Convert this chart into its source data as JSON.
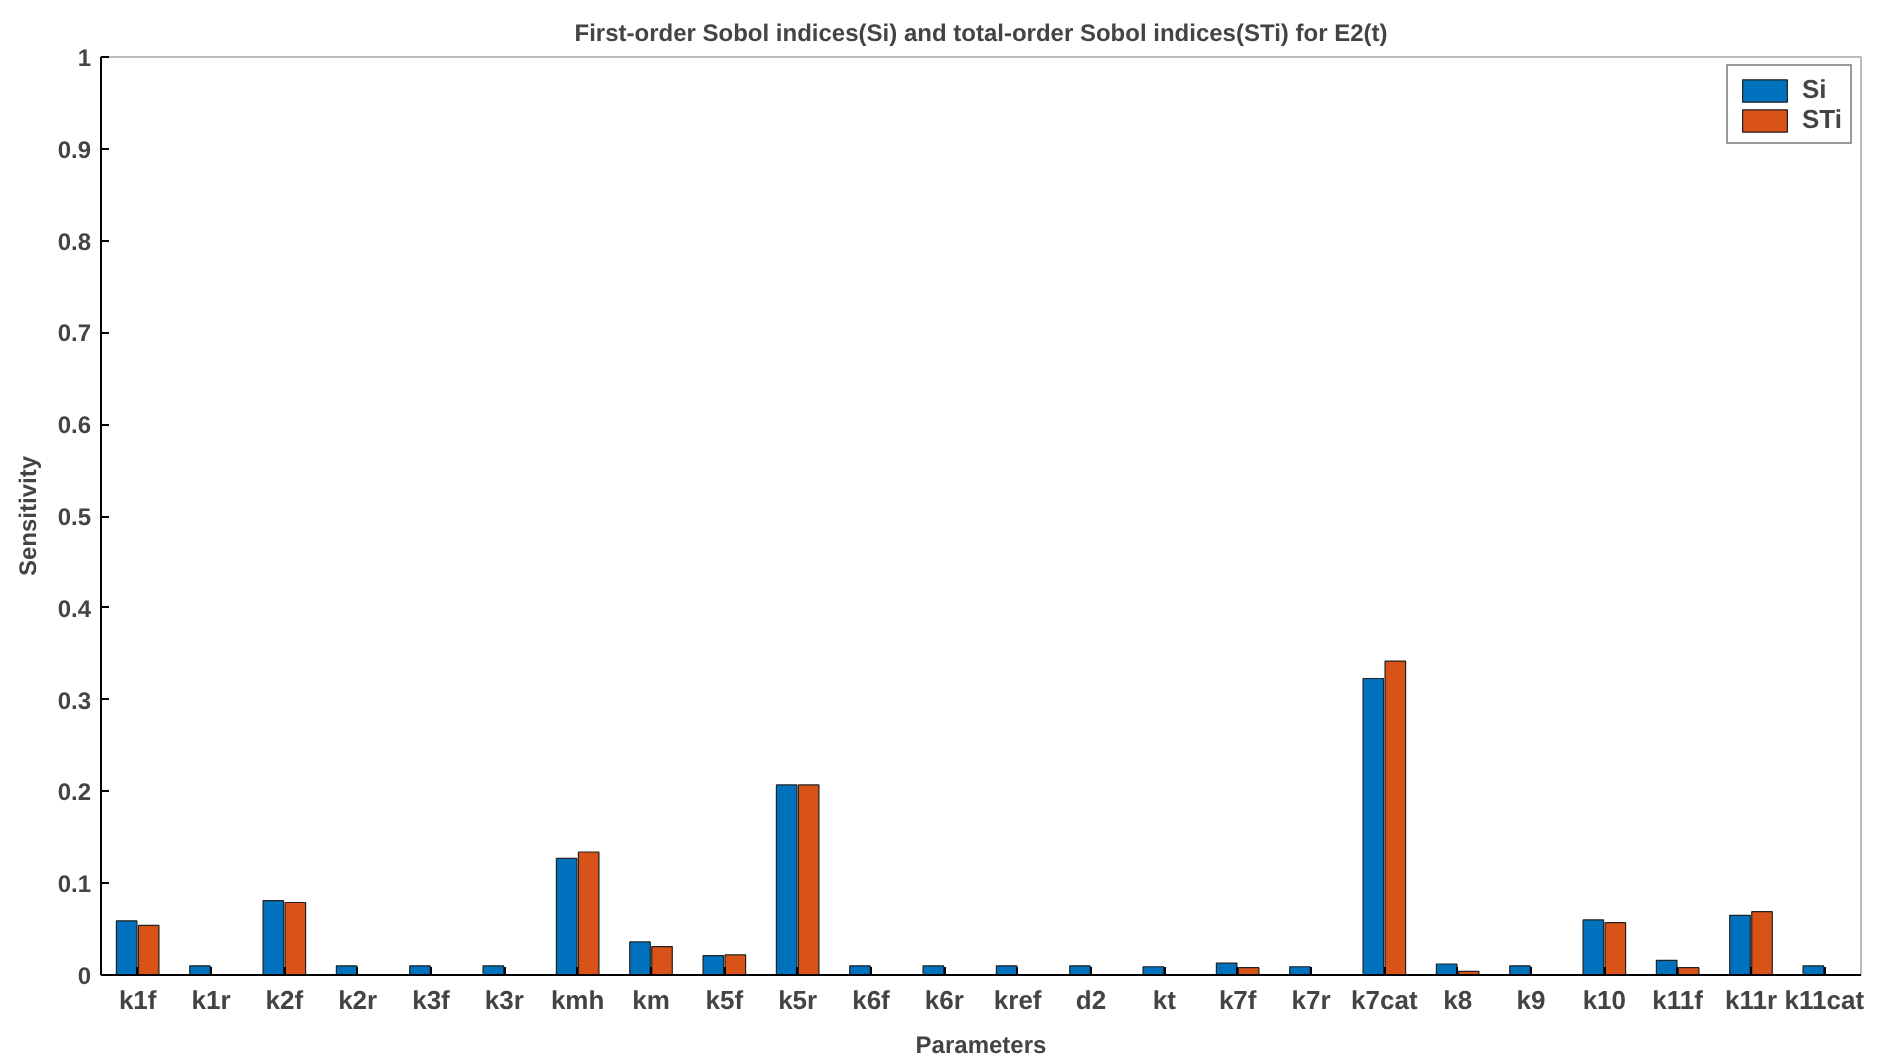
{
  "chart_data": {
    "type": "bar",
    "title": "First-order Sobol indices(Si) and total-order Sobol indices(STi) for E2(t)",
    "xlabel": "Parameters",
    "ylabel": "Sensitivity",
    "categories": [
      "k1f",
      "k1r",
      "k2f",
      "k2r",
      "k3f",
      "k3r",
      "kmh",
      "km",
      "k5f",
      "k5r",
      "k6f",
      "k6r",
      "kref",
      "d2",
      "kt",
      "k7f",
      "k7r",
      "k7cat",
      "k8",
      "k9",
      "k10",
      "k11f",
      "k11r",
      "k11cat"
    ],
    "series": [
      {
        "name": "Si",
        "color": "#0072bd",
        "values": [
          0.059,
          0.01,
          0.081,
          0.01,
          0.01,
          0.01,
          0.127,
          0.036,
          0.021,
          0.207,
          0.01,
          0.01,
          0.01,
          0.01,
          0.009,
          0.013,
          0.009,
          0.323,
          0.012,
          0.01,
          0.06,
          0.016,
          0.065,
          0.01
        ]
      },
      {
        "name": "STi",
        "color": "#d95319",
        "values": [
          0.054,
          null,
          0.079,
          null,
          null,
          null,
          0.134,
          0.031,
          0.022,
          0.207,
          null,
          null,
          null,
          null,
          null,
          0.008,
          null,
          0.342,
          0.004,
          null,
          0.057,
          0.008,
          0.069,
          null
        ]
      }
    ],
    "ylim": [
      0,
      1
    ],
    "yticks": [
      0,
      0.1,
      0.2,
      0.3,
      0.4,
      0.5,
      0.6,
      0.7,
      0.8,
      0.9,
      1
    ],
    "grid": false,
    "legend": "top right"
  }
}
